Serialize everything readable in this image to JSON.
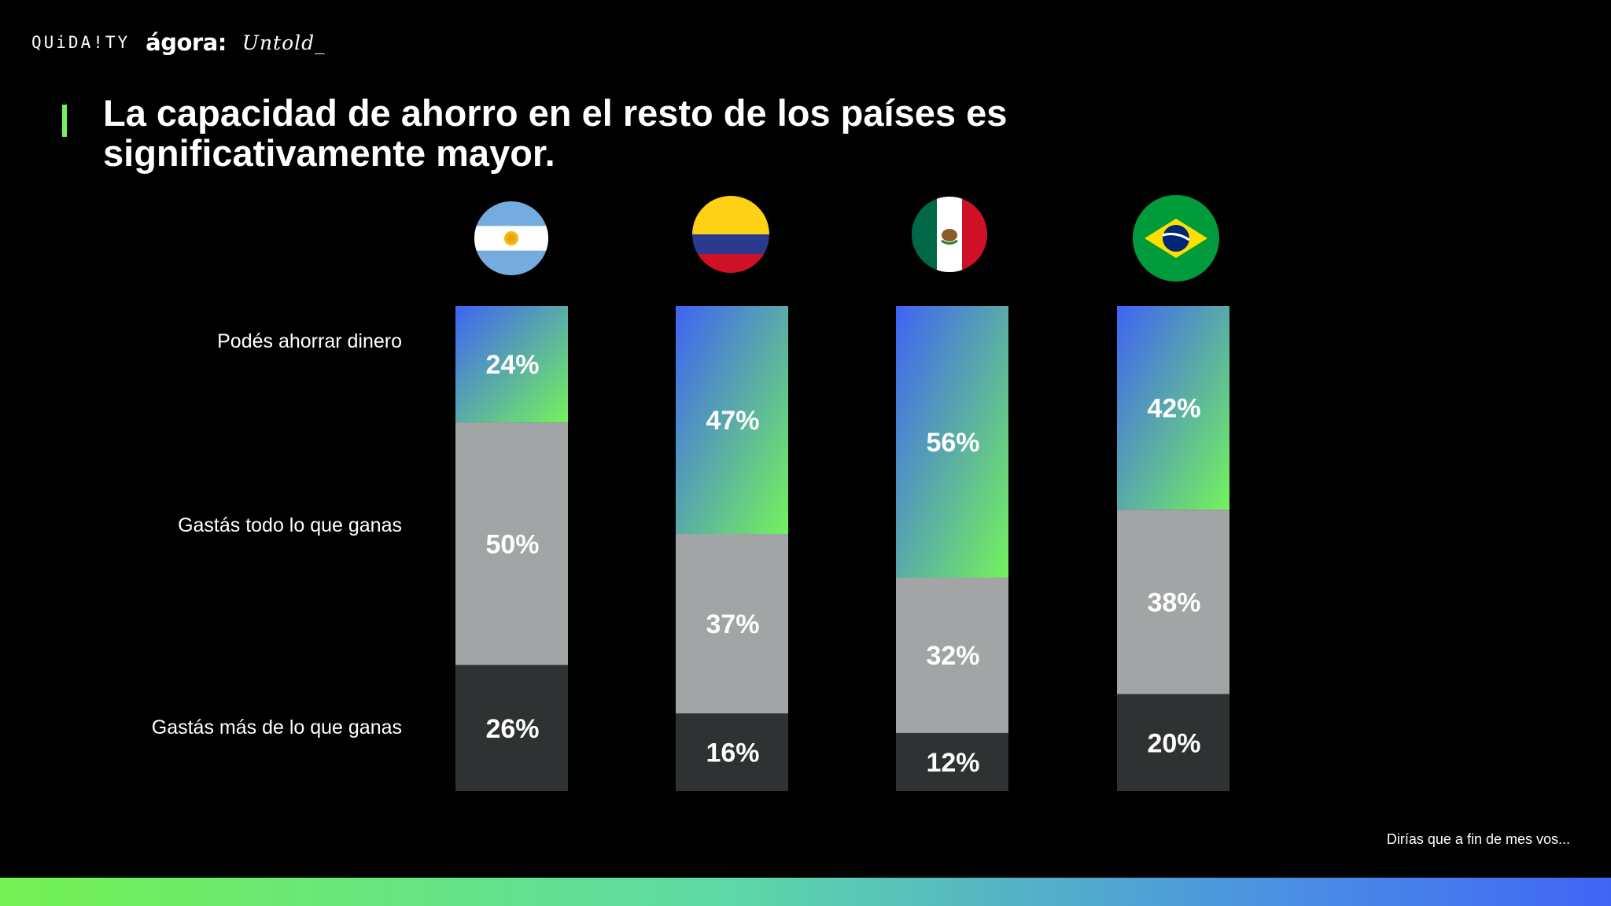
{
  "logos": {
    "quidaity": "QUiDA!TY",
    "agora": "ágora:",
    "untold": "Untold_"
  },
  "title": "La capacidad de ahorro en el resto de los países es significativamente mayor.",
  "footnote": "Dirías que a fin de mes vos...",
  "colors": {
    "accent": "#6ff55a",
    "save_gradient": [
      "#3f63f4",
      "#74f25c"
    ],
    "all": "#a2a5a6",
    "more": "#2f3232",
    "band": [
      "#74f252",
      "#4065f5"
    ]
  },
  "chart_data": {
    "type": "bar",
    "stacked": true,
    "orientation": "vertical",
    "categories": [
      "Argentina",
      "Colombia",
      "México",
      "Brasil"
    ],
    "category_icons": [
      "flag-argentina-icon",
      "flag-colombia-icon",
      "flag-mexico-icon",
      "flag-brazil-icon"
    ],
    "series": [
      {
        "name": "Podés ahorrar dinero",
        "values": [
          24,
          47,
          56,
          42
        ]
      },
      {
        "name": "Gastás todo lo que ganas",
        "values": [
          50,
          37,
          32,
          38
        ]
      },
      {
        "name": "Gastás más de lo que ganas",
        "values": [
          26,
          16,
          12,
          20
        ]
      }
    ],
    "data_labels": [
      [
        "24%",
        "47%",
        "56%",
        "42%"
      ],
      [
        "50%",
        "37%",
        "32%",
        "38%"
      ],
      [
        "26%",
        "16%",
        "12%",
        "20%"
      ]
    ],
    "unit": "%",
    "ylim": [
      0,
      100
    ],
    "grid": false,
    "legend": "left (row labels)"
  }
}
